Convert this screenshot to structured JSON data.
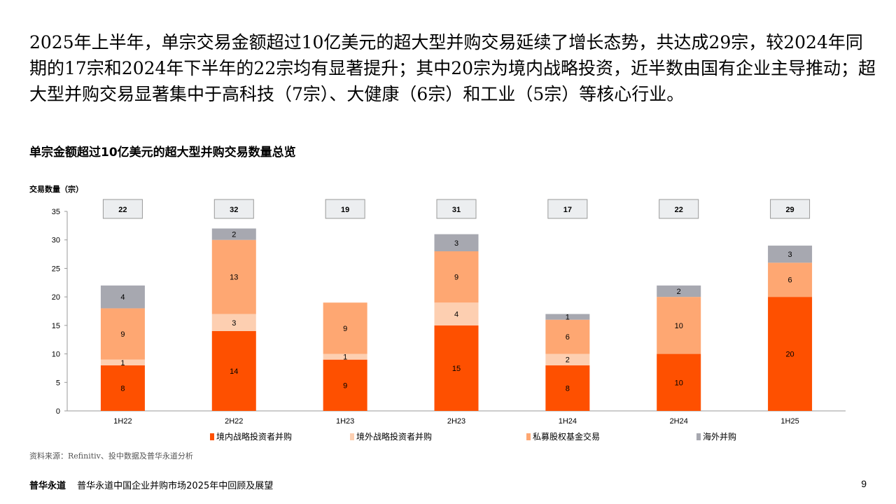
{
  "intro_text": "2025年上半年，单宗交易金额超过10亿美元的超大型并购交易延续了增长态势，共达成29宗，较2024年同期的17宗和2024年下半年的22宗均有显著提升；其中20宗为境内战略投资，近半数由国有企业主导推动；超大型并购交易显著集中于高科技（7宗）、大健康（6宗）和工业（5宗）等核心行业。",
  "source": "资料来源：Refinitiv、投中数据及普华永道分析",
  "footer": {
    "brand": "普华永道",
    "title": "普华永道中国企业并购市场2025年中回顾及展望",
    "page": "9"
  },
  "chart_data": {
    "type": "bar",
    "stacked": true,
    "title": "单宗金额超过10亿美元的超大型并购交易数量总览",
    "ylabel": "交易数量（宗）",
    "xlabel": "",
    "ylim": [
      0,
      35
    ],
    "yticks": [
      0,
      5,
      10,
      15,
      20,
      25,
      30,
      35
    ],
    "grid": false,
    "legend_position": "bottom",
    "categories": [
      "1H22",
      "2H22",
      "1H23",
      "2H23",
      "1H24",
      "2H24",
      "1H25"
    ],
    "totals": [
      22,
      32,
      19,
      31,
      17,
      22,
      29
    ],
    "series": [
      {
        "name": "境内战略投资者并购",
        "color": "#fe5000",
        "values": [
          8,
          14,
          9,
          15,
          8,
          10,
          20
        ]
      },
      {
        "name": "境外战略投资者并购",
        "color": "#fdcfb1",
        "values": [
          1,
          3,
          1,
          4,
          2,
          0,
          0
        ]
      },
      {
        "name": "私募股权基金交易",
        "color": "#fea772",
        "values": [
          9,
          13,
          9,
          9,
          6,
          10,
          6
        ]
      },
      {
        "name": "海外并购",
        "color": "#a7a8b0",
        "values": [
          4,
          2,
          0,
          3,
          1,
          2,
          3
        ]
      }
    ]
  }
}
